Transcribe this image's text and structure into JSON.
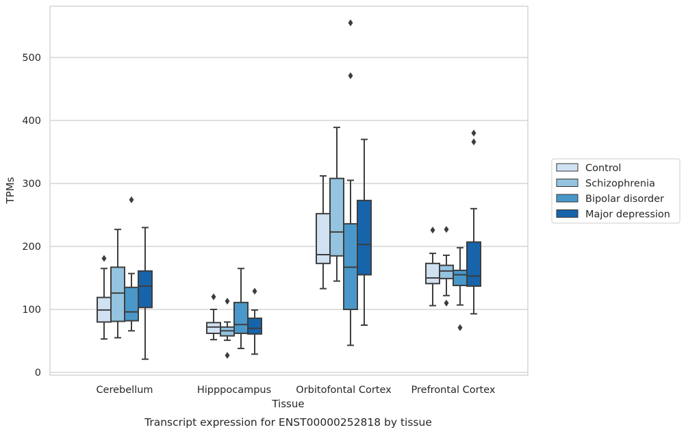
{
  "chart_data": {
    "type": "box",
    "xlabel": "Tissue",
    "ylabel": "TPMs",
    "caption": "Transcript expression for ENST00000252818 by tissue",
    "ylim": [
      -5,
      583
    ],
    "yticks": [
      0,
      100,
      200,
      300,
      400,
      500
    ],
    "grid": "horizontal",
    "legend_position": "right",
    "categories": [
      "Cerebellum",
      "Hipppocampus",
      "Orbitofontal Cortex",
      "Prefrontal Cortex"
    ],
    "series": [
      {
        "name": "Control",
        "color": "#d0e1f2",
        "boxes": [
          {
            "whislo": 53,
            "q1": 80,
            "median": 99,
            "q3": 119,
            "whishi": 165,
            "fliers": [
              181
            ]
          },
          {
            "whislo": 52,
            "q1": 62,
            "median": 72,
            "q3": 79,
            "whishi": 100,
            "fliers": [
              120
            ]
          },
          {
            "whislo": 133,
            "q1": 173,
            "median": 187,
            "q3": 252,
            "whishi": 312,
            "fliers": []
          },
          {
            "whislo": 106,
            "q1": 141,
            "median": 150,
            "q3": 173,
            "whishi": 189,
            "fliers": [
              226
            ]
          }
        ]
      },
      {
        "name": "Schizophrenia",
        "color": "#94c4df",
        "boxes": [
          {
            "whislo": 55,
            "q1": 81,
            "median": 126,
            "q3": 167,
            "whishi": 227,
            "fliers": []
          },
          {
            "whislo": 51,
            "q1": 58,
            "median": 66,
            "q3": 72,
            "whishi": 80,
            "fliers": [
              27,
              113
            ]
          },
          {
            "whislo": 145,
            "q1": 185,
            "median": 223,
            "q3": 308,
            "whishi": 389,
            "fliers": []
          },
          {
            "whislo": 122,
            "q1": 149,
            "median": 161,
            "q3": 170,
            "whishi": 186,
            "fliers": [
              110,
              227
            ]
          }
        ]
      },
      {
        "name": "Bipolar disorder",
        "color": "#4a98c9",
        "boxes": [
          {
            "whislo": 66,
            "q1": 82,
            "median": 96,
            "q3": 135,
            "whishi": 157,
            "fliers": [
              274
            ]
          },
          {
            "whislo": 38,
            "q1": 62,
            "median": 76,
            "q3": 111,
            "whishi": 165,
            "fliers": []
          },
          {
            "whislo": 43,
            "q1": 100,
            "median": 167,
            "q3": 236,
            "whishi": 305,
            "fliers": [
              471,
              555
            ]
          },
          {
            "whislo": 107,
            "q1": 138,
            "median": 155,
            "q3": 162,
            "whishi": 198,
            "fliers": [
              71
            ]
          }
        ]
      },
      {
        "name": "Major depression",
        "color": "#1764ab",
        "boxes": [
          {
            "whislo": 21,
            "q1": 103,
            "median": 137,
            "q3": 161,
            "whishi": 230,
            "fliers": []
          },
          {
            "whislo": 29,
            "q1": 61,
            "median": 70,
            "q3": 86,
            "whishi": 99,
            "fliers": [
              129
            ]
          },
          {
            "whislo": 75,
            "q1": 155,
            "median": 203,
            "q3": 273,
            "whishi": 370,
            "fliers": []
          },
          {
            "whislo": 93,
            "q1": 137,
            "median": 153,
            "q3": 207,
            "whishi": 260,
            "fliers": [
              366,
              380
            ]
          }
        ]
      }
    ]
  }
}
